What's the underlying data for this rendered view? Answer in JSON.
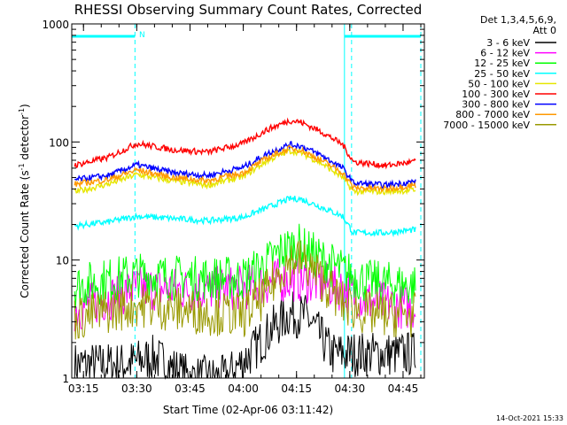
{
  "chart_data": {
    "type": "line",
    "title": "RHESSI Observing Summary Count Rates, Corrected",
    "xlabel": "Start Time (02-Apr-06 03:11:42)",
    "ylabel_main": "Corrected Count Rate (s",
    "ylabel_sup1": "-1",
    "ylabel_mid": " detector",
    "ylabel_sup2": "-1",
    "ylabel_end": ")",
    "yscale": "log",
    "ylim": [
      1,
      1000
    ],
    "xlim": [
      "03:11:42",
      "04:51:00"
    ],
    "x_ticks": [
      "03:15",
      "03:30",
      "03:45",
      "04:00",
      "04:15",
      "04:30",
      "04:45"
    ],
    "y_ticks": [
      "1",
      "10",
      "100",
      "1000"
    ],
    "night_marker_label": "N",
    "night_intervals": [
      [
        "03:11:42",
        "03:29:30"
      ],
      [
        "04:28:30",
        "04:50:00"
      ]
    ],
    "dashed_markers": [
      "03:29:30",
      "04:30:30",
      "04:50:00"
    ],
    "legend_header": [
      "Det 1,3,4,5,6,9,",
      "Att 0"
    ],
    "timestamp": "14-Oct-2021 15:33",
    "series": [
      {
        "name": "3 - 6 keV",
        "color": "#000000",
        "x": [
          "03:26",
          "03:35",
          "03:45",
          "03:55",
          "04:02",
          "04:08",
          "04:13",
          "04:18",
          "04:25"
        ],
        "values": [
          1.3,
          1.5,
          1.0,
          1.0,
          1.6,
          2.6,
          3.5,
          3.3,
          1.6
        ]
      },
      {
        "name": "6 - 12 keV",
        "color": "#ff00ff",
        "x": [
          "03:13",
          "03:30",
          "03:45",
          "04:00",
          "04:06",
          "04:11",
          "04:15",
          "04:20",
          "04:28",
          "04:35",
          "04:48"
        ],
        "values": [
          3.8,
          5.8,
          5.6,
          5.8,
          6.3,
          6.8,
          6.9,
          6.5,
          5.7,
          4.5,
          3.9
        ]
      },
      {
        "name": "12 - 25 keV",
        "color": "#00ff00",
        "x": [
          "03:13",
          "03:30",
          "03:45",
          "04:00",
          "04:06",
          "04:11",
          "04:15",
          "04:20",
          "04:28",
          "04:35",
          "04:48"
        ],
        "values": [
          6.0,
          7.5,
          7.0,
          7.0,
          9.0,
          12.0,
          13.5,
          11.0,
          8.0,
          6.5,
          6.0
        ]
      },
      {
        "name": "25 - 50 keV",
        "color": "#00ffff",
        "x": [
          "03:13",
          "03:22",
          "03:30",
          "03:40",
          "03:50",
          "04:00",
          "04:07",
          "04:13",
          "04:16",
          "04:22",
          "04:28",
          "04:31",
          "04:40",
          "04:48"
        ],
        "values": [
          19.5,
          21.0,
          23.5,
          22.5,
          21.5,
          23.0,
          28.0,
          33.0,
          33.0,
          28.0,
          23.5,
          17.0,
          17.0,
          18.0
        ]
      },
      {
        "name": "50 - 100 keV",
        "color": "#e6e600",
        "x": [
          "03:13",
          "03:22",
          "03:30",
          "03:40",
          "03:50",
          "04:00",
          "04:07",
          "04:13",
          "04:16",
          "04:22",
          "04:28",
          "04:31",
          "04:40",
          "04:48"
        ],
        "values": [
          38.0,
          44.0,
          53.0,
          47.0,
          43.0,
          51.0,
          70.0,
          84.0,
          82.0,
          66.0,
          50.0,
          38.0,
          38.0,
          39.0
        ]
      },
      {
        "name": "100 - 300 keV",
        "color": "#ff0000",
        "x": [
          "03:13",
          "03:22",
          "03:30",
          "03:40",
          "03:50",
          "04:00",
          "04:07",
          "04:13",
          "04:16",
          "04:22",
          "04:28",
          "04:31",
          "04:40",
          "04:48"
        ],
        "values": [
          64.0,
          74.0,
          97.0,
          86.0,
          82.0,
          97.0,
          128.0,
          152.0,
          148.0,
          122.0,
          95.0,
          68.0,
          63.0,
          68.0
        ]
      },
      {
        "name": "300 - 800 keV",
        "color": "#0000ff",
        "x": [
          "03:13",
          "03:22",
          "03:30",
          "03:40",
          "03:50",
          "04:00",
          "04:07",
          "04:13",
          "04:16",
          "04:22",
          "04:28",
          "04:31",
          "04:40",
          "04:48"
        ],
        "values": [
          48.0,
          52.0,
          64.0,
          55.0,
          52.0,
          61.0,
          80.0,
          95.0,
          93.0,
          77.0,
          60.0,
          45.0,
          43.0,
          46.0
        ]
      },
      {
        "name": "800 - 7000 keV",
        "color": "#ff9900",
        "x": [
          "03:13",
          "03:22",
          "03:30",
          "03:40",
          "03:50",
          "04:00",
          "04:07",
          "04:13",
          "04:16",
          "04:22",
          "04:28",
          "04:31",
          "04:40",
          "04:48"
        ],
        "values": [
          44.0,
          48.0,
          58.0,
          50.0,
          47.0,
          55.0,
          74.0,
          88.0,
          86.0,
          70.0,
          55.0,
          41.0,
          40.0,
          43.0
        ]
      },
      {
        "name": "7000 - 15000 keV",
        "color": "#999900",
        "x": [
          "03:13",
          "03:30",
          "03:45",
          "04:00",
          "04:06",
          "04:11",
          "04:15",
          "04:20",
          "04:28",
          "04:35",
          "04:48"
        ],
        "values": [
          3.2,
          4.2,
          3.7,
          3.4,
          5.0,
          8.5,
          10.5,
          8.0,
          4.3,
          3.5,
          3.4
        ]
      }
    ]
  }
}
